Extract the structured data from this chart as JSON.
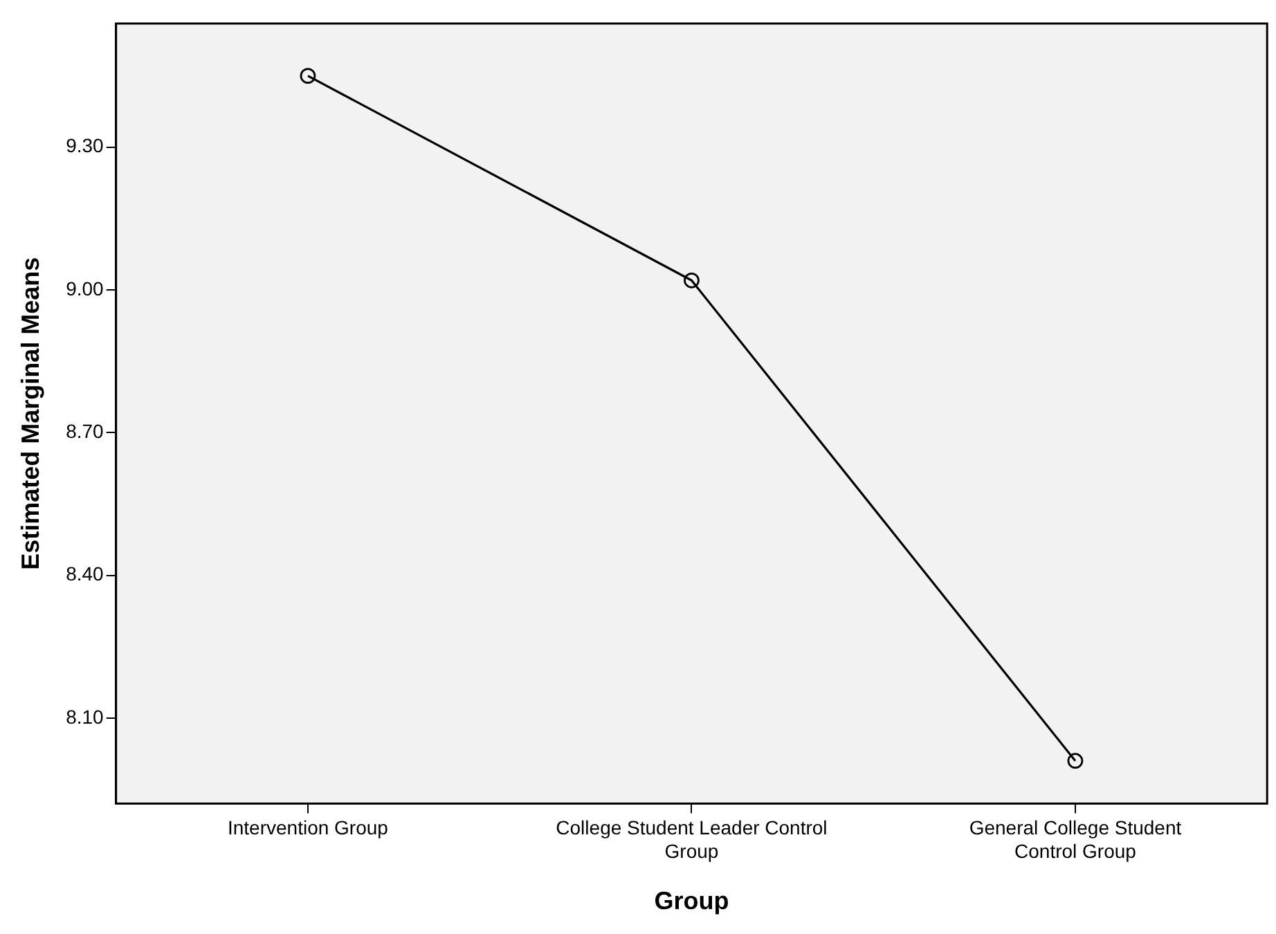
{
  "chart_data": {
    "type": "line",
    "xlabel": "Group",
    "ylabel": "Estimated Marginal Means",
    "categories": [
      "Intervention Group",
      "College Student Leader Control Group",
      "General College Student Control Group"
    ],
    "series": [
      {
        "color": "#000000",
        "values": [
          9.45,
          9.02,
          8.01
        ]
      }
    ],
    "ylim": [
      7.92,
      9.56
    ],
    "yticks": [
      {
        "value": 8.1,
        "label": "8.10"
      },
      {
        "value": 8.4,
        "label": "8.40"
      },
      {
        "value": 8.7,
        "label": "8.70"
      },
      {
        "value": 9.0,
        "label": "9.00"
      },
      {
        "value": 9.3,
        "label": "9.30"
      }
    ],
    "grid": false,
    "legend": false,
    "marker": "circle",
    "line_style": "solid"
  }
}
